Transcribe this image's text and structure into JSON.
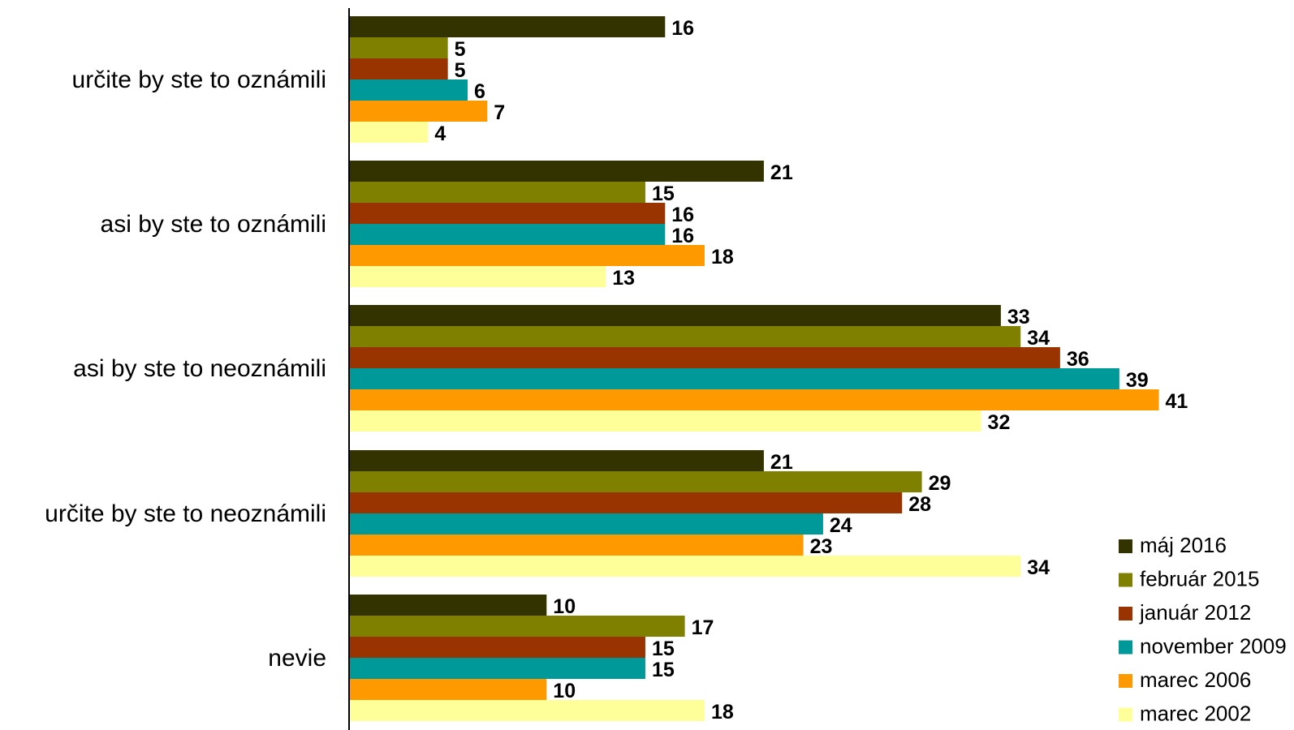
{
  "chart_data": {
    "type": "bar",
    "orientation": "horizontal",
    "categories": [
      "určite by ste to oznámili",
      "asi by ste to oznámili",
      "asi by ste to neoznámili",
      "určite by ste to neoznámili",
      "nevie"
    ],
    "series": [
      {
        "name": "máj 2016",
        "color": "#333300",
        "values": [
          16,
          21,
          33,
          21,
          10
        ]
      },
      {
        "name": "február 2015",
        "color": "#808000",
        "values": [
          5,
          15,
          34,
          29,
          17
        ]
      },
      {
        "name": "január 2012",
        "color": "#993300",
        "values": [
          5,
          16,
          36,
          28,
          15
        ]
      },
      {
        "name": "november 2009",
        "color": "#009999",
        "values": [
          6,
          16,
          39,
          24,
          15
        ]
      },
      {
        "name": "marec 2006",
        "color": "#FF9900",
        "values": [
          7,
          18,
          41,
          23,
          10
        ]
      },
      {
        "name": "marec 2002",
        "color": "#FFFF99",
        "values": [
          4,
          13,
          32,
          34,
          18
        ]
      }
    ],
    "xlim": [
      0,
      42
    ],
    "grid": false,
    "data_labels": true,
    "legend_position": "bottom-right"
  }
}
